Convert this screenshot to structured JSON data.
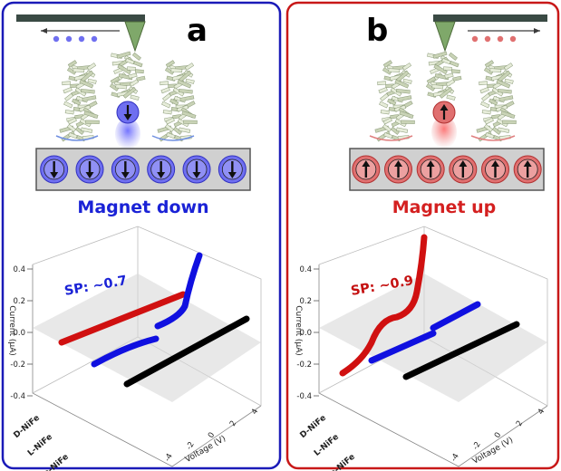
{
  "panels": [
    {
      "letter": "a",
      "caption": "Magnet down",
      "caption_color": "#1a22d6",
      "border_color": "#1a1ab8",
      "spin_direction": "down",
      "spin_color": "#6f6ff0",
      "sp_label": "SP: ~0.7",
      "sp_color": "#1a22d6",
      "y_axis_label": "Current (μA)",
      "x_axis_label": "Voltage (V)",
      "y_ticks": [
        "0.4",
        "0.2",
        "0.0",
        "-0.2",
        "-0.4"
      ],
      "x_ticks": [
        "4",
        "2",
        "0",
        "-2",
        "-4"
      ],
      "sample_labels": [
        "D-NiFe",
        "L-NiFe",
        "a-NiFe"
      ],
      "magnet_spin_count": 6
    },
    {
      "letter": "b",
      "caption": "Magnet up",
      "caption_color": "#d42020",
      "border_color": "#c81818",
      "spin_direction": "up",
      "spin_color": "#e07070",
      "sp_label": "SP: ~0.9",
      "sp_color": "#c41010",
      "y_axis_label": "Current (μA)",
      "x_axis_label": "Voltage (V)",
      "y_ticks": [
        "0.4",
        "0.2",
        "0.0",
        "-0.2",
        "-0.4"
      ],
      "x_ticks": [
        "4",
        "2",
        "0",
        "-2",
        "-4"
      ],
      "sample_labels": [
        "D-NiFe",
        "L-NiFe",
        "a-NiFe"
      ],
      "magnet_spin_count": 6
    }
  ],
  "colors": {
    "series_D": "#d01010",
    "series_L": "#1010e0",
    "series_a": "#000000",
    "plate": "#d8d8d8",
    "tip": "#7fa86a",
    "cantilever": "#3a4a44"
  }
}
